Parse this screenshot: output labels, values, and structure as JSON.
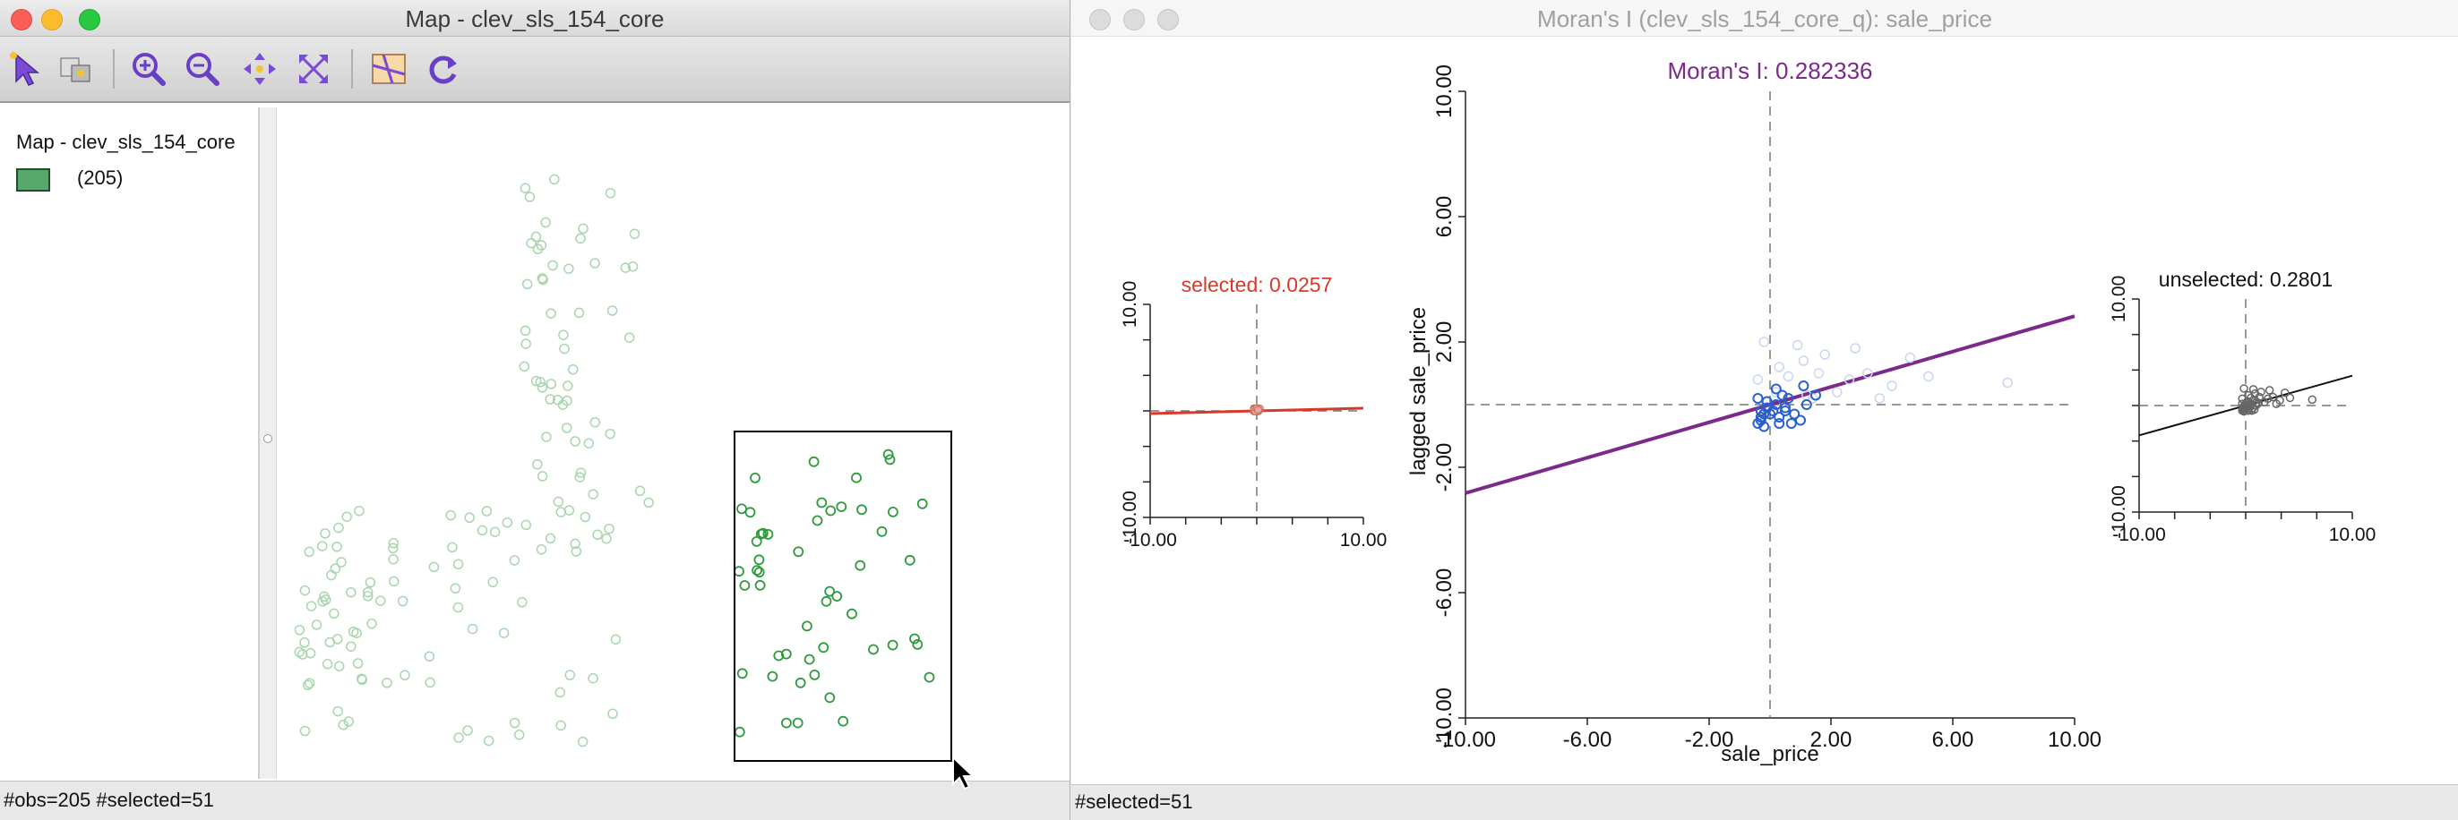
{
  "map_window": {
    "title": "Map - clev_sls_154_core",
    "toolbar": {
      "icons": [
        "select-arrow-icon",
        "selection-mode-icon",
        "zoom-in-icon",
        "zoom-out-icon",
        "pan-icon",
        "fit-extent-icon",
        "basemap-icon",
        "refresh-icon"
      ]
    },
    "legend": {
      "title": "Map - clev_sls_154_core",
      "category_label": "(205)"
    },
    "status": "#obs=205 #selected=51",
    "colors": {
      "selected": "#2e9a3e",
      "unselected": "#a8d6ac",
      "fill": "#57a86a"
    }
  },
  "moran_window": {
    "title": "Moran's I (clev_sls_154_core_q): sale_price",
    "status": "#selected=51",
    "colors": {
      "main_line": "#7b2a8a",
      "selected": "#d9382a",
      "selected_points": "#2a5fd0",
      "unselected_points": "#666666"
    }
  },
  "chart_data": [
    {
      "type": "scatter",
      "title": "Moran's I: 0.282336",
      "xlabel": "sale_price",
      "ylabel": "lagged sale_price",
      "xlim": [
        -10,
        10
      ],
      "ylim": [
        -10,
        10
      ],
      "x_ticks": [
        "-10.00",
        "-6.00",
        "-2.00",
        "2.00",
        "6.00",
        "10.00"
      ],
      "y_ticks": [
        "-10.00",
        "-6.00",
        "-2.00",
        "2.00",
        "6.00",
        "10.00"
      ],
      "slope": 0.282336,
      "series": [
        {
          "name": "selected",
          "points": [
            [
              -0.3,
              -0.5
            ],
            [
              -0.2,
              -0.3
            ],
            [
              -0.4,
              -0.6
            ],
            [
              0.1,
              -0.2
            ],
            [
              0.3,
              -0.4
            ],
            [
              0.5,
              -0.1
            ],
            [
              -0.1,
              0.1
            ],
            [
              0.2,
              0.0
            ],
            [
              -0.3,
              -0.2
            ],
            [
              0.4,
              0.3
            ],
            [
              1.1,
              0.6
            ],
            [
              0.3,
              -0.6
            ],
            [
              -0.2,
              -0.7
            ],
            [
              0.6,
              0.2
            ],
            [
              -0.4,
              0.2
            ],
            [
              0.8,
              -0.3
            ],
            [
              1.0,
              -0.5
            ],
            [
              0.2,
              0.5
            ],
            [
              -0.3,
              -0.4
            ],
            [
              0.0,
              -0.3
            ],
            [
              1.5,
              0.3
            ],
            [
              0.5,
              -0.2
            ],
            [
              1.2,
              0.0
            ],
            [
              -0.1,
              -0.1
            ],
            [
              0.7,
              -0.6
            ]
          ]
        },
        {
          "name": "unselected",
          "points": [
            [
              -0.2,
              2.0
            ],
            [
              0.3,
              1.2
            ],
            [
              0.6,
              0.9
            ],
            [
              1.1,
              1.4
            ],
            [
              1.8,
              1.6
            ],
            [
              2.6,
              0.8
            ],
            [
              3.2,
              1.0
            ],
            [
              4.0,
              0.6
            ],
            [
              4.6,
              1.5
            ],
            [
              5.2,
              0.9
            ],
            [
              7.8,
              0.7
            ],
            [
              1.2,
              0.3
            ],
            [
              2.2,
              0.4
            ],
            [
              0.9,
              1.9
            ],
            [
              -0.4,
              0.8
            ],
            [
              1.4,
              0.2
            ],
            [
              2.8,
              1.8
            ],
            [
              0.2,
              0.4
            ],
            [
              1.6,
              1.0
            ],
            [
              3.6,
              0.2
            ]
          ]
        }
      ]
    },
    {
      "type": "scatter",
      "title": "selected: 0.0257",
      "xlim": [
        -10,
        10
      ],
      "ylim": [
        -10,
        10
      ],
      "x_ticks": [
        "-10.00",
        "10.00"
      ],
      "y_ticks": [
        "-10.00",
        "10.00"
      ],
      "slope": 0.0257
    },
    {
      "type": "scatter",
      "title": "unselected: 0.2801",
      "xlim": [
        -10,
        10
      ],
      "ylim": [
        -10,
        10
      ],
      "x_ticks": [
        "-10.00",
        "10.00"
      ],
      "y_ticks": [
        "-10.00",
        "10.00"
      ],
      "slope": 0.2801
    }
  ]
}
